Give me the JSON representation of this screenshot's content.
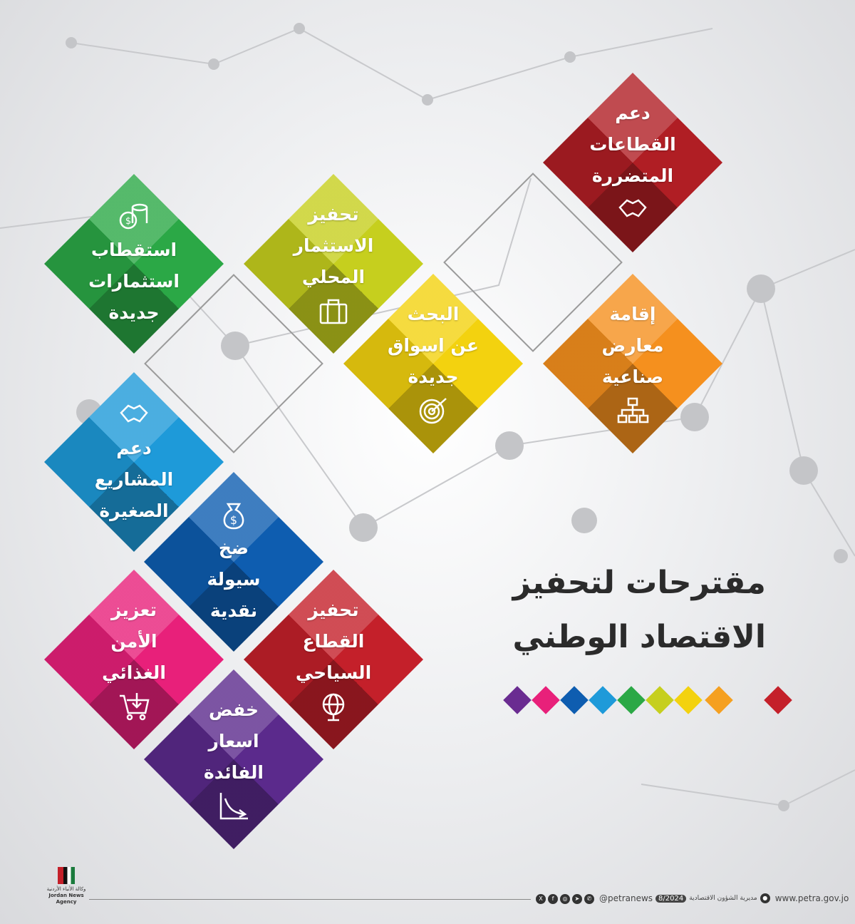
{
  "title": {
    "line1": "مقترحات لتحفيز",
    "line2": "الاقتصاد الوطني"
  },
  "items": [
    {
      "lines": [
        "دعم",
        "القطاعات",
        "المتضررة"
      ],
      "icon": "handshake-icon",
      "color": "#b01e24"
    },
    {
      "lines": [
        "إقامة",
        "معارض",
        "صناعية"
      ],
      "icon": "org-chart-icon",
      "color": "#f5901e"
    },
    {
      "lines": [
        "تحفيز",
        "الاستثمار",
        "المحلي"
      ],
      "icon": "briefcase-icon",
      "color": "#c6cf1e"
    },
    {
      "lines": [
        "البحث",
        "عن اسواق",
        "جديدة"
      ],
      "icon": "target-icon",
      "color": "#f3d20f"
    },
    {
      "lines": [
        "استقطاب",
        "استثمارات",
        "جديدة"
      ],
      "icon": "coins-icon",
      "color": "#2ba846"
    },
    {
      "lines": [
        "دعم",
        "المشاريع",
        "الصغيرة"
      ],
      "icon": "handshake-icon",
      "color": "#1e9ad9"
    },
    {
      "lines": [
        "ضخ",
        "سيولة",
        "نقدية"
      ],
      "icon": "money-bag-icon",
      "color": "#0e5db0"
    },
    {
      "lines": [
        "تعزيز",
        "الأمن",
        "الغذائي"
      ],
      "icon": "cart-icon",
      "color": "#e8207a"
    },
    {
      "lines": [
        "تحفيز",
        "القطاع",
        "السياحي"
      ],
      "icon": "globe-icon",
      "color": "#c4202a"
    },
    {
      "lines": [
        "خفض",
        "اسعار",
        "الفائدة"
      ],
      "icon": "down-trend-icon",
      "color": "#5b2a8c"
    }
  ],
  "legend_colors": [
    "#6a2c91",
    "#e8207a",
    "#0e5db0",
    "#1e9ad9",
    "#2ba846",
    "#c6cf1e",
    "#f3d20f",
    "#f5a020",
    "#c4202a"
  ],
  "footer": {
    "handle": "@petranews",
    "date": "8/2024",
    "department": "مديرية الشؤون الاقتصادية",
    "website": "www.petra.gov.jo",
    "agency_ar": "وكالة الأنباء الأردنية",
    "agency_en": "Jordan News Agency",
    "social": [
      "x-icon",
      "facebook-icon",
      "instagram-icon",
      "telegram-icon",
      "whatsapp-icon"
    ]
  }
}
